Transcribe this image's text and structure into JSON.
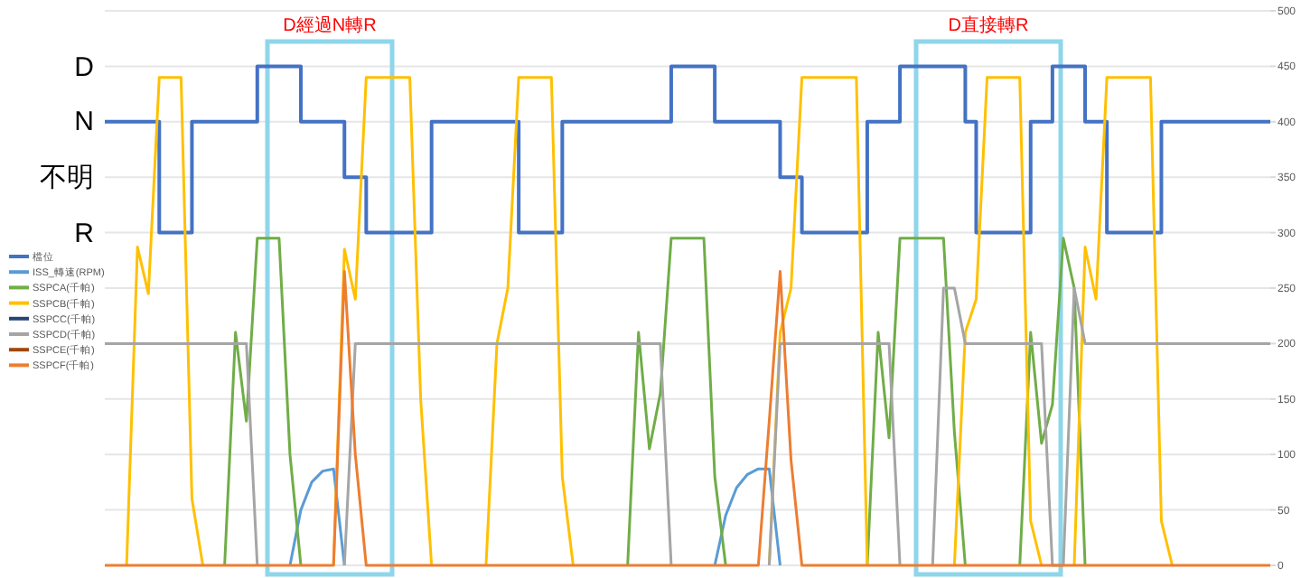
{
  "chart_data": {
    "type": "line",
    "categories": [
      null,
      null,
      null,
      null,
      null,
      null,
      null,
      null,
      null,
      null,
      null,
      null,
      null,
      null,
      null,
      null,
      null,
      null,
      null,
      null,
      null,
      null,
      null,
      null,
      null,
      null,
      null,
      null,
      null,
      null,
      null,
      null,
      null,
      null,
      null,
      null,
      null,
      null,
      null,
      null,
      null,
      null,
      null,
      null,
      null,
      null,
      null,
      null,
      null,
      null,
      null,
      null,
      null,
      null,
      null,
      null,
      null,
      null,
      null,
      null,
      null,
      null,
      null,
      null,
      null,
      null,
      null,
      null,
      null,
      null,
      null,
      null,
      null,
      null,
      null,
      null,
      null,
      null,
      null,
      null,
      null,
      null,
      null,
      null,
      null,
      null,
      null,
      null,
      null,
      null,
      null,
      null,
      null,
      null,
      null,
      null,
      null,
      null,
      null,
      null,
      null,
      null,
      null,
      null,
      null,
      null,
      null,
      null
    ],
    "ylim": [
      0,
      500
    ],
    "yticks": [
      0,
      50,
      100,
      150,
      200,
      250,
      300,
      350,
      400,
      450,
      500
    ],
    "grid": "y",
    "legend": "left",
    "annotations": [
      "D",
      "N",
      "不明",
      "R",
      "D經過N轉R",
      "D直接轉R"
    ],
    "series": [
      {
        "name": "檔位",
        "type": "step",
        "color": "#4472c4",
        "values": [
          400,
          400,
          400,
          400,
          400,
          300,
          300,
          300,
          400,
          400,
          400,
          400,
          400,
          400,
          450,
          450,
          450,
          450,
          400,
          400,
          400,
          400,
          350,
          350,
          300,
          300,
          300,
          300,
          300,
          300,
          400,
          400,
          400,
          400,
          400,
          400,
          400,
          400,
          300,
          300,
          300,
          300,
          400,
          400,
          400,
          400,
          400,
          400,
          400,
          400,
          400,
          400,
          450,
          450,
          450,
          450,
          400,
          400,
          400,
          400,
          400,
          400,
          350,
          350,
          300,
          300,
          300,
          300,
          300,
          300,
          400,
          400,
          400,
          450,
          450,
          450,
          450,
          450,
          450,
          400,
          300,
          300,
          300,
          300,
          300,
          400,
          400,
          450,
          450,
          450,
          400,
          400,
          300,
          300,
          300,
          300,
          300,
          400,
          400,
          400,
          400,
          400,
          400,
          400,
          400,
          400,
          400,
          400
        ]
      },
      {
        "name": "ISS_轉速(RPM)",
        "color": "#5b9bd5",
        "values": [
          null,
          null,
          null,
          null,
          null,
          null,
          null,
          null,
          null,
          null,
          null,
          null,
          null,
          null,
          null,
          null,
          null,
          0,
          50,
          75,
          85,
          87,
          0,
          null,
          null,
          null,
          null,
          null,
          null,
          null,
          null,
          null,
          null,
          null,
          null,
          null,
          null,
          null,
          null,
          null,
          null,
          null,
          null,
          null,
          null,
          null,
          null,
          null,
          null,
          null,
          null,
          null,
          null,
          null,
          null,
          null,
          0,
          45,
          70,
          82,
          87,
          87,
          0,
          null,
          null,
          null,
          null,
          null,
          null,
          null,
          null,
          null,
          null,
          null,
          null,
          null,
          null,
          null,
          null,
          null,
          null,
          null,
          null,
          null,
          null,
          null,
          null,
          null,
          null,
          null,
          null,
          null,
          null,
          null,
          null,
          null,
          null,
          null,
          null,
          null,
          null,
          null,
          null,
          null,
          null,
          null,
          null,
          null
        ]
      },
      {
        "name": "SSPCA(千帕)",
        "color": "#70ad47",
        "values": [
          null,
          null,
          null,
          null,
          null,
          null,
          null,
          null,
          null,
          null,
          null,
          0,
          210,
          130,
          295,
          295,
          295,
          100,
          0,
          null,
          null,
          null,
          null,
          null,
          null,
          null,
          null,
          null,
          null,
          null,
          null,
          null,
          null,
          null,
          null,
          null,
          null,
          null,
          null,
          null,
          null,
          null,
          null,
          null,
          null,
          null,
          null,
          null,
          0,
          210,
          105,
          155,
          295,
          295,
          295,
          295,
          80,
          0,
          null,
          null,
          null,
          null,
          null,
          null,
          null,
          null,
          null,
          null,
          null,
          null,
          0,
          210,
          115,
          295,
          295,
          295,
          295,
          295,
          120,
          0,
          null,
          null,
          null,
          null,
          0,
          210,
          110,
          145,
          295,
          250,
          0,
          null,
          null,
          null,
          null,
          null,
          null,
          null,
          null,
          null,
          null,
          null,
          null,
          null,
          null,
          null,
          null,
          null
        ]
      },
      {
        "name": "SSPCB(千帕)",
        "color": "#ffc000",
        "values": [
          null,
          null,
          0,
          287,
          245,
          440,
          440,
          440,
          60,
          0,
          null,
          null,
          null,
          null,
          null,
          null,
          null,
          null,
          null,
          null,
          null,
          0,
          285,
          240,
          440,
          440,
          440,
          440,
          440,
          150,
          0,
          null,
          null,
          null,
          null,
          0,
          200,
          250,
          440,
          440,
          440,
          440,
          80,
          0,
          null,
          null,
          null,
          null,
          null,
          null,
          null,
          null,
          null,
          null,
          null,
          null,
          null,
          null,
          null,
          null,
          null,
          0,
          210,
          250,
          440,
          440,
          440,
          440,
          440,
          440,
          0,
          null,
          null,
          null,
          null,
          null,
          null,
          null,
          0,
          210,
          240,
          440,
          440,
          440,
          440,
          40,
          0,
          null,
          null,
          0,
          287,
          240,
          440,
          440,
          440,
          440,
          440,
          40,
          0,
          null,
          null,
          null,
          null,
          null,
          null,
          null,
          null,
          null
        ]
      },
      {
        "name": "SSPCC(千帕)",
        "color": "#264478",
        "values": [
          null,
          null,
          null,
          null,
          null,
          null,
          null,
          null,
          null,
          null,
          null,
          null,
          null,
          null,
          null,
          null,
          null,
          null,
          null,
          null,
          null,
          null,
          null,
          null,
          null,
          null,
          null,
          null,
          null,
          null,
          null,
          null,
          null,
          null,
          null,
          null,
          null,
          null,
          null,
          null,
          null,
          null,
          null,
          null,
          null,
          null,
          null,
          null,
          null,
          null,
          null,
          null,
          null,
          null,
          null,
          null,
          null,
          null,
          null,
          null,
          null,
          null,
          null,
          null,
          null,
          null,
          null,
          null,
          null,
          null,
          null,
          null,
          null,
          null,
          null,
          null,
          null,
          null,
          null,
          null,
          null,
          null,
          null,
          null,
          null,
          null,
          null,
          null,
          null,
          null,
          null,
          null,
          null,
          null,
          null,
          null,
          null,
          null,
          null,
          null,
          null,
          null,
          null,
          null,
          null,
          null,
          null,
          null
        ]
      },
      {
        "name": "SSPCD(千帕)",
        "color": "#a5a5a5",
        "values": [
          200,
          200,
          200,
          200,
          200,
          200,
          200,
          200,
          200,
          200,
          200,
          200,
          200,
          200,
          0,
          null,
          null,
          null,
          null,
          null,
          null,
          null,
          0,
          200,
          200,
          200,
          200,
          200,
          200,
          200,
          200,
          200,
          200,
          200,
          200,
          200,
          200,
          200,
          200,
          200,
          200,
          200,
          200,
          200,
          200,
          200,
          200,
          200,
          200,
          200,
          200,
          200,
          0,
          null,
          null,
          null,
          null,
          null,
          null,
          null,
          null,
          0,
          200,
          200,
          200,
          200,
          200,
          200,
          200,
          200,
          200,
          200,
          200,
          0,
          null,
          null,
          0,
          250,
          250,
          200,
          200,
          200,
          200,
          200,
          200,
          200,
          200,
          0,
          0,
          250,
          200,
          200,
          200,
          200,
          200,
          200,
          200,
          200,
          200,
          200,
          200,
          200,
          200,
          200,
          200,
          200,
          200,
          200
        ]
      },
      {
        "name": "SSPCE(千帕)",
        "color": "#9e480e",
        "values": [
          null,
          null,
          null,
          null,
          null,
          null,
          null,
          null,
          null,
          null,
          null,
          null,
          null,
          null,
          null,
          null,
          null,
          null,
          null,
          null,
          null,
          null,
          null,
          null,
          null,
          null,
          null,
          null,
          null,
          null,
          null,
          null,
          null,
          null,
          null,
          null,
          null,
          null,
          null,
          null,
          null,
          null,
          null,
          null,
          null,
          null,
          null,
          null,
          null,
          null,
          null,
          null,
          null,
          null,
          null,
          null,
          null,
          null,
          null,
          null,
          null,
          null,
          null,
          null,
          null,
          null,
          null,
          null,
          null,
          null,
          null,
          null,
          null,
          null,
          null,
          null,
          null,
          null,
          null,
          null,
          null,
          null,
          null,
          null,
          null,
          null,
          null,
          null,
          null,
          null,
          null,
          null,
          null,
          null,
          null,
          null,
          null,
          null,
          null,
          null,
          null,
          null,
          null,
          null,
          null,
          null,
          null,
          null
        ]
      },
      {
        "name": "SSPCF(千帕)",
        "color": "#ed7d31",
        "values": [
          0,
          0,
          0,
          0,
          0,
          0,
          0,
          0,
          0,
          0,
          0,
          0,
          0,
          0,
          0,
          0,
          0,
          0,
          0,
          0,
          0,
          0,
          265,
          100,
          0,
          0,
          0,
          0,
          0,
          0,
          0,
          0,
          0,
          0,
          0,
          0,
          0,
          0,
          0,
          0,
          0,
          0,
          0,
          0,
          0,
          0,
          0,
          0,
          0,
          0,
          0,
          0,
          0,
          0,
          0,
          0,
          0,
          0,
          0,
          0,
          0,
          130,
          265,
          95,
          0,
          0,
          0,
          0,
          0,
          0,
          0,
          0,
          0,
          0,
          0,
          0,
          0,
          0,
          0,
          0,
          0,
          0,
          0,
          0,
          0,
          0,
          0,
          0,
          0,
          0,
          0,
          0,
          0,
          0,
          0,
          0,
          0,
          0,
          0,
          0,
          0,
          0,
          0,
          0,
          0,
          0,
          0,
          0
        ]
      }
    ]
  }
}
